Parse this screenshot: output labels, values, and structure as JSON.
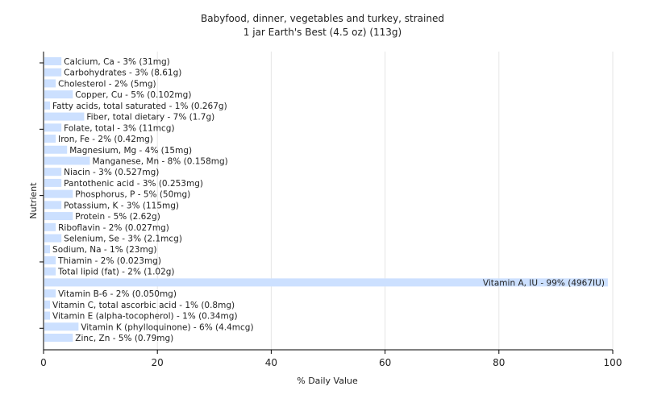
{
  "chart_data": {
    "type": "bar",
    "orientation": "horizontal",
    "title": "Babyfood, dinner, vegetables and turkey, strained",
    "subtitle": "1 jar Earth's Best (4.5 oz) (113g)",
    "xlabel": "% Daily Value",
    "ylabel": "Nutrient",
    "xlim": [
      0,
      100
    ],
    "xticks": [
      0,
      20,
      40,
      60,
      80,
      100
    ],
    "grid": true,
    "bar_color": "#cce0ff",
    "categories": [
      "Calcium, Ca",
      "Carbohydrates",
      "Cholesterol",
      "Copper, Cu",
      "Fatty acids, total saturated",
      "Fiber, total dietary",
      "Folate, total",
      "Iron, Fe",
      "Magnesium, Mg",
      "Manganese, Mn",
      "Niacin",
      "Pantothenic acid",
      "Phosphorus, P",
      "Potassium, K",
      "Protein",
      "Riboflavin",
      "Selenium, Se",
      "Sodium, Na",
      "Thiamin",
      "Total lipid (fat)",
      "Vitamin A, IU",
      "Vitamin B-6",
      "Vitamin C, total ascorbic acid",
      "Vitamin E (alpha-tocopherol)",
      "Vitamin K (phylloquinone)",
      "Zinc, Zn"
    ],
    "values": [
      3,
      3,
      2,
      5,
      1,
      7,
      3,
      2,
      4,
      8,
      3,
      3,
      5,
      3,
      5,
      2,
      3,
      1,
      2,
      2,
      99,
      2,
      1,
      1,
      6,
      5
    ],
    "amounts": [
      "31mg",
      "8.61g",
      "5mg",
      "0.102mg",
      "0.267g",
      "1.7g",
      "11mcg",
      "0.42mg",
      "15mg",
      "0.158mg",
      "0.527mg",
      "0.253mg",
      "50mg",
      "115mg",
      "2.62g",
      "0.027mg",
      "2.1mcg",
      "23mg",
      "0.023mg",
      "1.02g",
      "4967IU",
      "0.050mg",
      "0.8mg",
      "0.34mg",
      "4.4mcg",
      "0.79mg"
    ],
    "bar_labels": [
      "Calcium, Ca - 3% (31mg)",
      "Carbohydrates - 3% (8.61g)",
      "Cholesterol - 2% (5mg)",
      "Copper, Cu - 5% (0.102mg)",
      "Fatty acids, total saturated - 1% (0.267g)",
      "Fiber, total dietary - 7% (1.7g)",
      "Folate, total - 3% (11mcg)",
      "Iron, Fe - 2% (0.42mg)",
      "Magnesium, Mg - 4% (15mg)",
      "Manganese, Mn - 8% (0.158mg)",
      "Niacin - 3% (0.527mg)",
      "Pantothenic acid - 3% (0.253mg)",
      "Phosphorus, P - 5% (50mg)",
      "Potassium, K - 3% (115mg)",
      "Protein - 5% (2.62g)",
      "Riboflavin - 2% (0.027mg)",
      "Selenium, Se - 3% (2.1mcg)",
      "Sodium, Na - 1% (23mg)",
      "Thiamin - 2% (0.023mg)",
      "Total lipid (fat) - 2% (1.02g)",
      "Vitamin A, IU - 99% (4967IU)",
      "Vitamin B-6 - 2% (0.050mg)",
      "Vitamin C, total ascorbic acid - 1% (0.8mg)",
      "Vitamin E (alpha-tocopherol) - 1% (0.34mg)",
      "Vitamin K (phylloquinone) - 6% (4.4mcg)",
      "Zinc, Zn - 5% (0.79mg)"
    ]
  }
}
